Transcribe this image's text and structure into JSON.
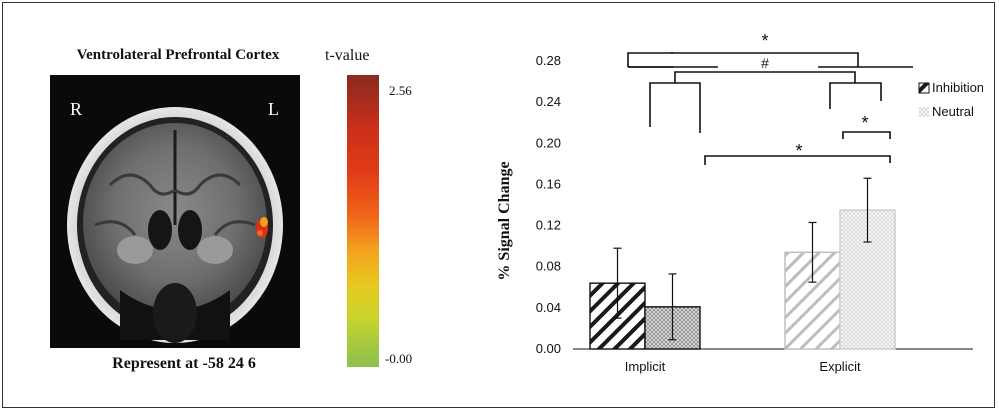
{
  "figure": {
    "mri_title": "Ventrolateral Prefrontal Cortex",
    "mri_caption": "Represent at -58 24 6",
    "orientation_left": "R",
    "orientation_right": "L",
    "colorbar_title": "t-value",
    "colorbar_max": "2.56",
    "colorbar_min": "-0.00"
  },
  "chart_data": {
    "type": "bar",
    "categories": [
      "Implicit",
      "Explicit"
    ],
    "series": [
      {
        "name": "Inhibition",
        "values": [
          0.064,
          0.094
        ],
        "errors": [
          0.034,
          0.029
        ],
        "pattern": "dark-diagonal-hatch"
      },
      {
        "name": "Neutral",
        "values": [
          0.041,
          0.135
        ],
        "errors": [
          0.032,
          0.031
        ],
        "pattern": "light-dotted"
      }
    ],
    "xlabel": "",
    "ylabel": "% Signal Change",
    "ylim": [
      0,
      0.28
    ],
    "yticks": [
      "0.00",
      "0.04",
      "0.08",
      "0.12",
      "0.16",
      "0.20",
      "0.24",
      "0.28"
    ],
    "legend_position": "right",
    "grid": false,
    "annotations": [
      {
        "label": "*",
        "between": "Inhibition vs Neutral (Explicit)"
      },
      {
        "label": "*",
        "between": "Neutral Implicit vs Neutral Explicit"
      },
      {
        "label": "#",
        "between": "Implicit vs Explicit (upper bracket)"
      },
      {
        "label": "*",
        "between": "Implicit vs Explicit (top bracket)"
      }
    ]
  }
}
